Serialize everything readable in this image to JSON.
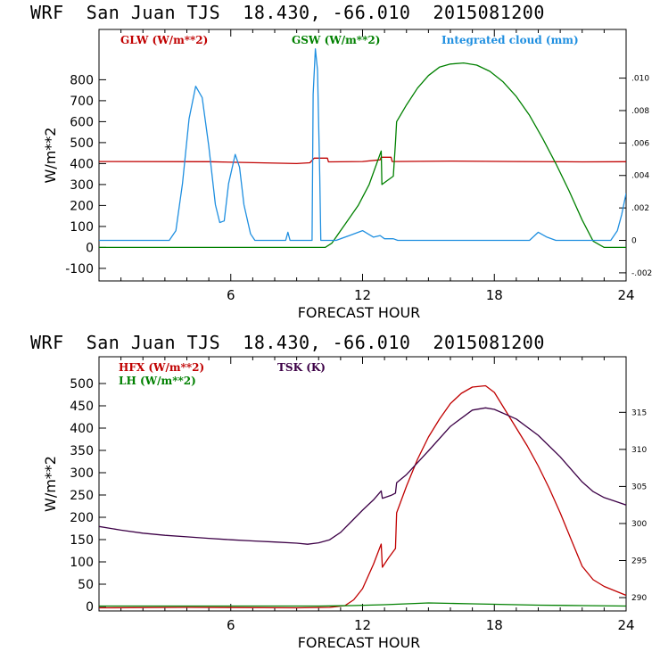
{
  "chart_data": [
    {
      "type": "line",
      "title": "WRF  San Juan TJS  18.430, -66.010  2015081200",
      "xlabel": "FORECAST HOUR",
      "ylabel": "W/m**2",
      "xlim": [
        0,
        24
      ],
      "ylim": [
        -160,
        1040
      ],
      "xticks": [
        "6",
        "12",
        "18",
        "24"
      ],
      "yticks": [
        "-100",
        "0",
        "100",
        "200",
        "300",
        "400",
        "500",
        "600",
        "700",
        "800"
      ],
      "y2lim": [
        -0.0025,
        0.013
      ],
      "y2ticks": [
        "-.002",
        "0",
        ".002",
        ".004",
        ".006",
        ".008",
        ".010"
      ],
      "legend": [
        "GLW (W/m**2)",
        "GSW (W/m**2)",
        "Integrated cloud (mm)"
      ],
      "series": [
        {
          "name": "GLW (W/m**2)",
          "color": "#c00000",
          "axis": "left",
          "points": [
            [
              0,
              410
            ],
            [
              5,
              409
            ],
            [
              9,
              400
            ],
            [
              9.6,
              404
            ],
            [
              9.8,
              426
            ],
            [
              10.4,
              426
            ],
            [
              10.45,
              408
            ],
            [
              12,
              410
            ],
            [
              12.8,
              418
            ],
            [
              12.85,
              430
            ],
            [
              13.3,
              430
            ],
            [
              13.35,
              410
            ],
            [
              16,
              412
            ],
            [
              19,
              410
            ],
            [
              22,
              408
            ],
            [
              24,
              409
            ]
          ]
        },
        {
          "name": "GSW (W/m**2)",
          "color": "#008000",
          "axis": "left",
          "points": [
            [
              0,
              0
            ],
            [
              10.3,
              0
            ],
            [
              10.6,
              20
            ],
            [
              11.2,
              110
            ],
            [
              11.8,
              200
            ],
            [
              12.3,
              300
            ],
            [
              12.85,
              460
            ],
            [
              12.88,
              300
            ],
            [
              13.4,
              340
            ],
            [
              13.5,
              500
            ],
            [
              13.55,
              600
            ],
            [
              14,
              680
            ],
            [
              14.5,
              760
            ],
            [
              15,
              820
            ],
            [
              15.5,
              860
            ],
            [
              16,
              875
            ],
            [
              16.6,
              880
            ],
            [
              17.2,
              870
            ],
            [
              17.8,
              840
            ],
            [
              18.4,
              790
            ],
            [
              19,
              720
            ],
            [
              19.6,
              630
            ],
            [
              20.2,
              520
            ],
            [
              20.8,
              400
            ],
            [
              21.4,
              270
            ],
            [
              22,
              130
            ],
            [
              22.5,
              30
            ],
            [
              23,
              0
            ],
            [
              24,
              0
            ]
          ]
        },
        {
          "name": "Integrated cloud (mm)",
          "color": "#1f8fe0",
          "axis": "right",
          "points": [
            [
              0,
              0
            ],
            [
              3.2,
              0
            ],
            [
              3.5,
              0.0006
            ],
            [
              3.8,
              0.0035
            ],
            [
              4.1,
              0.0075
            ],
            [
              4.4,
              0.0095
            ],
            [
              4.7,
              0.0088
            ],
            [
              5,
              0.0058
            ],
            [
              5.3,
              0.0022
            ],
            [
              5.5,
              0.0011
            ],
            [
              5.7,
              0.0012
            ],
            [
              5.9,
              0.0035
            ],
            [
              6.2,
              0.0053
            ],
            [
              6.4,
              0.0045
            ],
            [
              6.6,
              0.0022
            ],
            [
              6.9,
              0.0004
            ],
            [
              7.1,
              0
            ],
            [
              8.5,
              0
            ],
            [
              8.6,
              0.0005
            ],
            [
              8.7,
              0
            ],
            [
              9.7,
              0
            ],
            [
              9.75,
              0.009
            ],
            [
              9.85,
              0.0118
            ],
            [
              9.95,
              0.0105
            ],
            [
              10.05,
              0.004
            ],
            [
              10.1,
              0
            ],
            [
              10.8,
              0
            ],
            [
              11.4,
              0.0003
            ],
            [
              12,
              0.0006
            ],
            [
              12.5,
              0.0002
            ],
            [
              12.8,
              0.0003
            ],
            [
              13,
              0.0001
            ],
            [
              13.4,
              0.0001
            ],
            [
              13.6,
              0
            ],
            [
              19.6,
              0
            ],
            [
              20,
              0.0005
            ],
            [
              20.4,
              0.0002
            ],
            [
              20.8,
              0
            ],
            [
              23.3,
              0
            ],
            [
              23.6,
              0.0006
            ],
            [
              23.8,
              0.0016
            ],
            [
              24,
              0.0029
            ]
          ]
        }
      ]
    },
    {
      "type": "line",
      "title": "WRF  San Juan TJS  18.430, -66.010  2015081200",
      "xlabel": "FORECAST HOUR",
      "ylabel": "W/m**2",
      "xlim": [
        0,
        24
      ],
      "ylim": [
        -10,
        560
      ],
      "xticks": [
        "6",
        "12",
        "18",
        "24"
      ],
      "yticks": [
        "0",
        "50",
        "100",
        "150",
        "200",
        "250",
        "300",
        "350",
        "400",
        "450",
        "500"
      ],
      "y2lim": [
        288.2,
        322.5
      ],
      "y2ticks": [
        "290",
        "295",
        "300",
        "305",
        "310",
        "315"
      ],
      "legend": [
        "HFX (W/m**2)",
        "LH  (W/m**2)",
        "TSK (K)"
      ],
      "series": [
        {
          "name": "HFX (W/m**2)",
          "color": "#c00000",
          "axis": "left",
          "points": [
            [
              0,
              -3
            ],
            [
              4,
              -2
            ],
            [
              9,
              -3
            ],
            [
              10.5,
              -2
            ],
            [
              11.2,
              2
            ],
            [
              11.6,
              15
            ],
            [
              12,
              40
            ],
            [
              12.5,
              95
            ],
            [
              12.85,
              140
            ],
            [
              12.9,
              88
            ],
            [
              13.2,
              110
            ],
            [
              13.5,
              130
            ],
            [
              13.55,
              210
            ],
            [
              14,
              270
            ],
            [
              14.5,
              330
            ],
            [
              15,
              380
            ],
            [
              15.5,
              420
            ],
            [
              16,
              455
            ],
            [
              16.5,
              478
            ],
            [
              17,
              492
            ],
            [
              17.6,
              495
            ],
            [
              18,
              480
            ],
            [
              18.5,
              440
            ],
            [
              19,
              400
            ],
            [
              19.5,
              360
            ],
            [
              20,
              315
            ],
            [
              20.5,
              265
            ],
            [
              21,
              210
            ],
            [
              21.5,
              150
            ],
            [
              22,
              90
            ],
            [
              22.5,
              60
            ],
            [
              23,
              45
            ],
            [
              23.5,
              35
            ],
            [
              24,
              25
            ]
          ]
        },
        {
          "name": "LH  (W/m**2)",
          "color": "#008000",
          "axis": "left",
          "points": [
            [
              0,
              1
            ],
            [
              6,
              1
            ],
            [
              10,
              1
            ],
            [
              11.5,
              2
            ],
            [
              13,
              4
            ],
            [
              14,
              6
            ],
            [
              15,
              8
            ],
            [
              16,
              7
            ],
            [
              17,
              6
            ],
            [
              18,
              5
            ],
            [
              19,
              4
            ],
            [
              20,
              3
            ],
            [
              22,
              2
            ],
            [
              24,
              1
            ]
          ]
        },
        {
          "name": "TSK (K)",
          "color": "#3c0046",
          "axis": "right",
          "points": [
            [
              0,
              299.6
            ],
            [
              1,
              299.1
            ],
            [
              2,
              298.7
            ],
            [
              3,
              298.4
            ],
            [
              4,
              298.2
            ],
            [
              5,
              298.0
            ],
            [
              6,
              297.8
            ],
            [
              7,
              297.65
            ],
            [
              8,
              297.5
            ],
            [
              9,
              297.35
            ],
            [
              9.5,
              297.2
            ],
            [
              10,
              297.4
            ],
            [
              10.5,
              297.8
            ],
            [
              11,
              298.8
            ],
            [
              11.5,
              300.3
            ],
            [
              12,
              301.8
            ],
            [
              12.5,
              303.2
            ],
            [
              12.85,
              304.4
            ],
            [
              12.9,
              303.4
            ],
            [
              13.3,
              303.8
            ],
            [
              13.5,
              304.1
            ],
            [
              13.55,
              305.5
            ],
            [
              14,
              306.6
            ],
            [
              15,
              309.8
            ],
            [
              16,
              313.1
            ],
            [
              17,
              315.3
            ],
            [
              17.6,
              315.6
            ],
            [
              18,
              315.4
            ],
            [
              19,
              314.1
            ],
            [
              20,
              311.9
            ],
            [
              21,
              309.0
            ],
            [
              22,
              305.6
            ],
            [
              22.5,
              304.3
            ],
            [
              23,
              303.5
            ],
            [
              23.5,
              303.0
            ],
            [
              24,
              302.5
            ]
          ]
        }
      ]
    }
  ]
}
